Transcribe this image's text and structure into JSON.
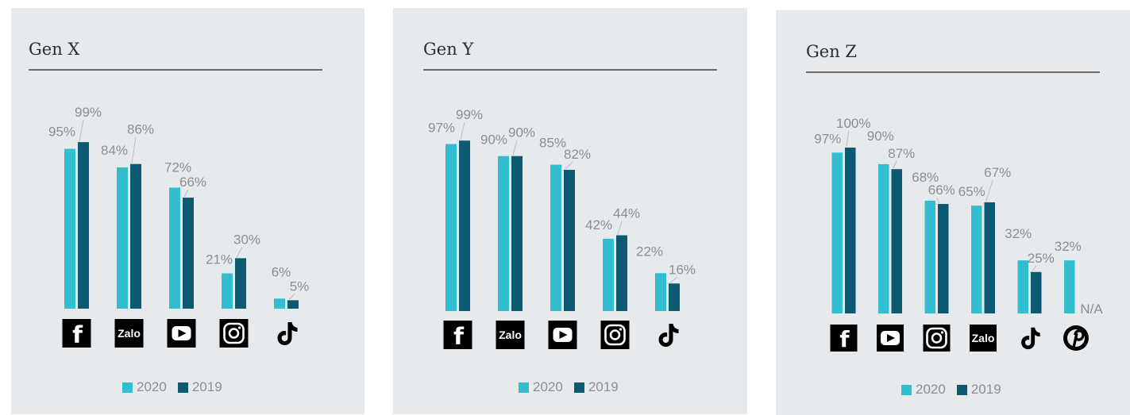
{
  "colors": {
    "c2020": "#33becf",
    "c2019": "#0b5a72",
    "panel_bg": "#e6eaec"
  },
  "legend": {
    "label_2020": "2020",
    "label_2019": "2019"
  },
  "chart_data": [
    {
      "type": "bar",
      "title": "Gen X",
      "categories": [
        "facebook-icon",
        "zalo-icon",
        "youtube-icon",
        "instagram-icon",
        "tiktok-icon"
      ],
      "series": [
        {
          "name": "2020",
          "values": [
            95,
            84,
            72,
            21,
            6
          ]
        },
        {
          "name": "2019",
          "values": [
            99,
            86,
            66,
            30,
            5
          ]
        }
      ],
      "labels_2020": [
        "95%",
        "84%",
        "72%",
        "21%",
        "6%"
      ],
      "labels_2019": [
        "99%",
        "86%",
        "66%",
        "30%",
        "5%"
      ],
      "ylim": [
        0,
        100
      ],
      "grid": false,
      "legend": "bottom"
    },
    {
      "type": "bar",
      "title": "Gen Y",
      "categories": [
        "facebook-icon",
        "zalo-icon",
        "youtube-icon",
        "instagram-icon",
        "tiktok-icon"
      ],
      "series": [
        {
          "name": "2020",
          "values": [
            97,
            90,
            85,
            42,
            22
          ]
        },
        {
          "name": "2019",
          "values": [
            99,
            90,
            82,
            44,
            16
          ]
        }
      ],
      "labels_2020": [
        "97%",
        "90%",
        "85%",
        "42%",
        "22%"
      ],
      "labels_2019": [
        "99%",
        "90%",
        "82%",
        "44%",
        "16%"
      ],
      "ylim": [
        0,
        100
      ],
      "grid": false,
      "legend": "bottom"
    },
    {
      "type": "bar",
      "title": "Gen Z",
      "categories": [
        "facebook-icon",
        "youtube-icon",
        "instagram-icon",
        "zalo-icon",
        "tiktok-icon",
        "pinterest-icon"
      ],
      "series": [
        {
          "name": "2020",
          "values": [
            97,
            90,
            68,
            65,
            32,
            32
          ]
        },
        {
          "name": "2019",
          "values": [
            100,
            87,
            66,
            67,
            25,
            null
          ]
        }
      ],
      "labels_2020": [
        "97%",
        "90%",
        "68%",
        "65%",
        "32%",
        "32%"
      ],
      "labels_2019": [
        "100%",
        "87%",
        "66%",
        "67%",
        "25%",
        "N/A"
      ],
      "ylim": [
        0,
        100
      ],
      "grid": false,
      "legend": "bottom"
    }
  ]
}
